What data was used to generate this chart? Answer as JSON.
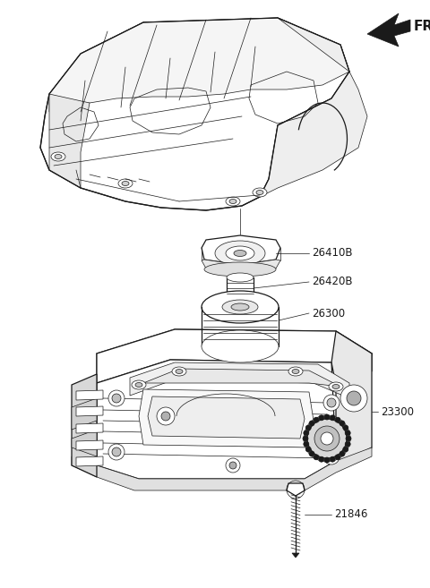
{
  "bg_color": "#ffffff",
  "line_color": "#1a1a1a",
  "label_color": "#1a1a1a",
  "labels": [
    "26410B",
    "26420B",
    "26300",
    "23300",
    "21846"
  ],
  "fr_label": "FR.",
  "title_fontsize": 10,
  "label_fontsize": 8.5,
  "lw_thin": 0.5,
  "lw_med": 0.9,
  "lw_thick": 1.2
}
